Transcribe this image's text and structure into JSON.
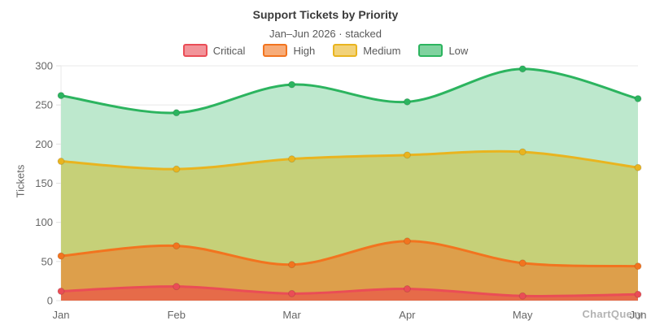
{
  "header": {
    "title": "Support Tickets by Priority",
    "subtitle": "Jan–Jun 2026 · stacked"
  },
  "watermark": "ChartQuery",
  "chart_data": {
    "type": "area",
    "stacked": true,
    "title": "Support Tickets by Priority",
    "subtitle": "Jan–Jun 2026 · stacked",
    "xlabel": "",
    "ylabel": "Tickets",
    "x": [
      "Jan",
      "Feb",
      "Mar",
      "Apr",
      "May",
      "Jun"
    ],
    "ylim": [
      0,
      300
    ],
    "yticks": [
      0,
      50,
      100,
      150,
      200,
      250,
      300
    ],
    "grid": true,
    "legend_position": "top",
    "series": [
      {
        "name": "Critical",
        "values": [
          12,
          18,
          9,
          15,
          6,
          8
        ],
        "line_color": "#ea4d56",
        "fill_color": "#e66b49"
      },
      {
        "name": "High",
        "values": [
          45,
          52,
          37,
          61,
          42,
          36
        ],
        "line_color": "#f2741f",
        "fill_color": "#dd9f4b"
      },
      {
        "name": "Medium",
        "values": [
          121,
          98,
          135,
          110,
          142,
          126
        ],
        "line_color": "#e9b41f",
        "fill_color": "#c6d078"
      },
      {
        "name": "Low",
        "values": [
          84,
          72,
          95,
          68,
          106,
          88
        ],
        "line_color": "#2cb45f",
        "fill_color": "#bde8cd"
      }
    ],
    "stacked_totals": {
      "Critical": [
        12,
        18,
        9,
        15,
        6,
        8
      ],
      "High": [
        57,
        70,
        46,
        76,
        48,
        44
      ],
      "Medium": [
        178,
        168,
        181,
        186,
        190,
        170
      ],
      "Low": [
        262,
        240,
        276,
        254,
        296,
        258
      ]
    }
  }
}
